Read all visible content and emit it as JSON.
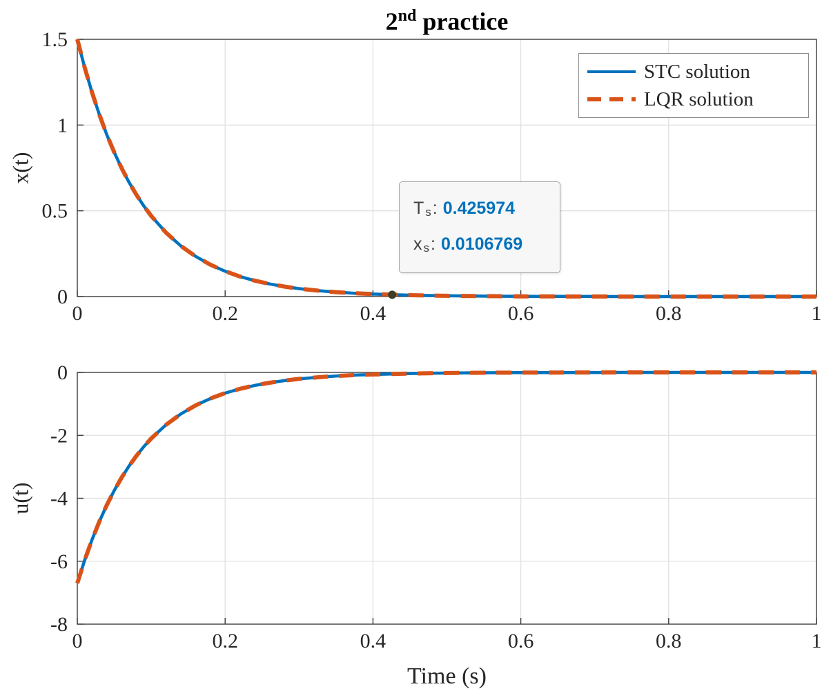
{
  "figure": {
    "title": {
      "base": "2",
      "sup": "nd",
      "rest": " practice"
    }
  },
  "legend": {
    "items": [
      {
        "label": "STC solution"
      },
      {
        "label": "LQR solution"
      }
    ]
  },
  "datatip": {
    "rows": [
      {
        "base": "T",
        "sub": "s",
        "sep": ":",
        "value": "0.425974"
      },
      {
        "base": "x",
        "sub": "s",
        "sep": ":",
        "value": "0.0106769"
      }
    ]
  },
  "chart_data": [
    {
      "type": "line",
      "title": "2nd practice",
      "ylabel": "x(t)",
      "xlim": [
        0,
        1
      ],
      "ylim": [
        0,
        1.5
      ],
      "xticks": [
        0,
        0.2,
        0.4,
        0.6,
        0.8,
        1
      ],
      "xtick_labels": [
        "0",
        "0.2",
        "0.4",
        "0.6",
        "0.8",
        "1"
      ],
      "yticks": [
        0,
        0.5,
        1,
        1.5
      ],
      "ytick_labels": [
        "0",
        "0.5",
        "1",
        "1.5"
      ],
      "grid": true,
      "legend_position": "northeast",
      "x": [
        0,
        0.01,
        0.02,
        0.03,
        0.04,
        0.05,
        0.06,
        0.07,
        0.08,
        0.09,
        0.1,
        0.12,
        0.14,
        0.16,
        0.18,
        0.2,
        0.22,
        0.24,
        0.26,
        0.28,
        0.3,
        0.325,
        0.35,
        0.375,
        0.4,
        0.425974,
        0.45,
        0.5,
        0.55,
        0.6,
        0.65,
        0.7,
        0.75,
        0.8,
        0.85,
        0.9,
        0.95,
        1.0
      ],
      "y": [
        1.5,
        1.3357,
        1.1895,
        1.0592,
        0.9432,
        0.8399,
        0.7479,
        0.666,
        0.5931,
        0.5281,
        0.4703,
        0.3729,
        0.2957,
        0.2344,
        0.1859,
        0.1474,
        0.1169,
        0.0927,
        0.0735,
        0.0583,
        0.0462,
        0.0346,
        0.0258,
        0.0193,
        0.0145,
        0.0107,
        0.0081,
        0.0045,
        0.0025,
        0.0014,
        0.0008,
        0.0004,
        0.0002,
        0.0001,
        0.0001,
        0.0,
        0.0,
        0.0
      ],
      "series": [
        {
          "name": "STC solution",
          "color": "#0072BD",
          "style": "solid",
          "width": 4.5
        },
        {
          "name": "LQR solution",
          "color": "#D95319",
          "style": "dashed",
          "width": 6
        }
      ],
      "marker": {
        "t": 0.425974,
        "value": 0.0106769,
        "color": "#3d3d2a"
      }
    },
    {
      "type": "line",
      "ylabel": "u(t)",
      "xlabel": "Time (s)",
      "xlim": [
        0,
        1
      ],
      "ylim": [
        -8,
        0
      ],
      "xticks": [
        0,
        0.2,
        0.4,
        0.6,
        0.8,
        1
      ],
      "xtick_labels": [
        "0",
        "0.2",
        "0.4",
        "0.6",
        "0.8",
        "1"
      ],
      "yticks": [
        -8,
        -6,
        -4,
        -2,
        0
      ],
      "ytick_labels": [
        "-8",
        "-6",
        "-4",
        "-2",
        "0"
      ],
      "grid": true,
      "x": [
        0,
        0.01,
        0.02,
        0.03,
        0.04,
        0.05,
        0.06,
        0.07,
        0.08,
        0.09,
        0.1,
        0.12,
        0.14,
        0.16,
        0.18,
        0.2,
        0.22,
        0.24,
        0.26,
        0.28,
        0.3,
        0.325,
        0.35,
        0.375,
        0.4,
        0.425974,
        0.45,
        0.5,
        0.55,
        0.6,
        0.65,
        0.7,
        0.75,
        0.8,
        0.85,
        0.9,
        0.95,
        1.0
      ],
      "y": [
        -6.7,
        -5.966,
        -5.313,
        -4.731,
        -4.213,
        -3.751,
        -3.34,
        -2.975,
        -2.649,
        -2.359,
        -2.1,
        -1.665,
        -1.321,
        -1.047,
        -0.83,
        -0.658,
        -0.522,
        -0.414,
        -0.328,
        -0.26,
        -0.206,
        -0.155,
        -0.115,
        -0.086,
        -0.065,
        -0.048,
        -0.036,
        -0.02,
        -0.011,
        -0.006,
        -0.004,
        -0.002,
        -0.001,
        -0.001,
        0.0,
        0.0,
        0.0,
        0.0
      ],
      "series": [
        {
          "name": "STC solution",
          "color": "#0072BD",
          "style": "solid",
          "width": 4.5
        },
        {
          "name": "LQR solution",
          "color": "#D95319",
          "style": "dashed",
          "width": 6
        }
      ]
    }
  ]
}
